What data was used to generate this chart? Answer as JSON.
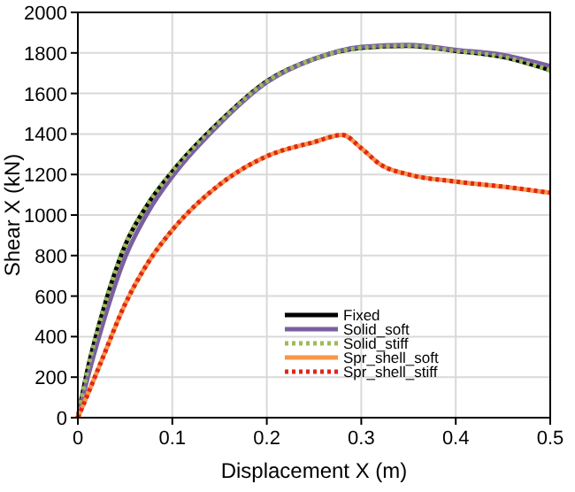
{
  "chart_data": {
    "type": "line",
    "xlabel": "Displacement X (m)",
    "ylabel": "Shear X (kN)",
    "xlim": [
      0,
      0.5
    ],
    "ylim": [
      0,
      2000
    ],
    "xticks": [
      0,
      0.1,
      0.2,
      0.3,
      0.4,
      0.5
    ],
    "yticks": [
      0,
      200,
      400,
      600,
      800,
      1000,
      1200,
      1400,
      1600,
      1800,
      2000
    ],
    "grid": true,
    "legend": "bottom right",
    "series": [
      {
        "name": "Fixed",
        "color": "#000000",
        "line_style": "solid",
        "x": [
          0,
          0.01,
          0.025,
          0.05,
          0.075,
          0.1,
          0.15,
          0.2,
          0.25,
          0.3,
          0.35,
          0.4,
          0.45,
          0.5
        ],
        "values": [
          0,
          230,
          500,
          850,
          1060,
          1214,
          1460,
          1660,
          1770,
          1825,
          1835,
          1810,
          1780,
          1715
        ]
      },
      {
        "name": "Solid_soft",
        "color": "#7a5fa0",
        "line_style": "solid",
        "x": [
          0,
          0.01,
          0.025,
          0.05,
          0.075,
          0.1,
          0.15,
          0.2,
          0.25,
          0.3,
          0.35,
          0.4,
          0.45,
          0.5
        ],
        "values": [
          0,
          190,
          440,
          790,
          1020,
          1190,
          1450,
          1655,
          1770,
          1830,
          1840,
          1815,
          1790,
          1735
        ]
      },
      {
        "name": "Solid_stiff",
        "color": "#9bbb59",
        "line_style": "dotted",
        "x": [
          0,
          0.01,
          0.025,
          0.05,
          0.075,
          0.1,
          0.15,
          0.2,
          0.25,
          0.3,
          0.35,
          0.4,
          0.45,
          0.5
        ],
        "values": [
          0,
          230,
          500,
          850,
          1060,
          1214,
          1460,
          1660,
          1770,
          1825,
          1835,
          1810,
          1780,
          1715
        ]
      },
      {
        "name": "Spr_shell_soft",
        "color": "#f79646",
        "line_style": "solid",
        "x": [
          0,
          0.01,
          0.025,
          0.05,
          0.075,
          0.1,
          0.15,
          0.2,
          0.25,
          0.28,
          0.3,
          0.32,
          0.35,
          0.4,
          0.45,
          0.5
        ],
        "values": [
          0,
          110,
          280,
          560,
          770,
          926,
          1150,
          1290,
          1360,
          1395,
          1330,
          1250,
          1200,
          1165,
          1140,
          1110
        ]
      },
      {
        "name": "Spr_shell_stiff",
        "color": "#e0261b",
        "line_style": "dotted",
        "x": [
          0,
          0.01,
          0.025,
          0.05,
          0.075,
          0.1,
          0.15,
          0.2,
          0.25,
          0.28,
          0.3,
          0.32,
          0.35,
          0.4,
          0.45,
          0.5
        ],
        "values": [
          0,
          110,
          280,
          560,
          770,
          926,
          1150,
          1290,
          1360,
          1395,
          1330,
          1250,
          1200,
          1165,
          1140,
          1110
        ]
      }
    ]
  }
}
